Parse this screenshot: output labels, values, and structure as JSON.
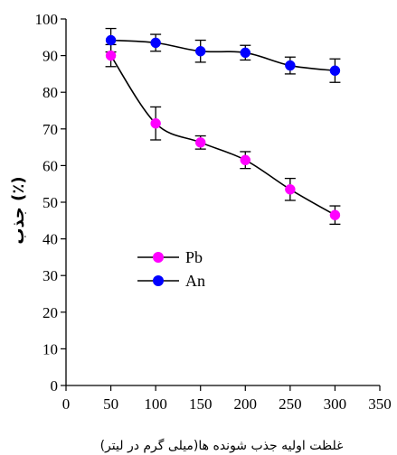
{
  "chart_data": {
    "type": "line",
    "xlabel": "غلظت اولیه جذب شونده ها(میلی گرم در لیتر)",
    "ylabel": "جذب (٪)",
    "xlim": [
      0,
      350
    ],
    "ylim": [
      0,
      100
    ],
    "x_ticks": [
      0,
      50,
      100,
      150,
      200,
      250,
      300,
      350
    ],
    "y_ticks": [
      0,
      10,
      20,
      30,
      40,
      50,
      60,
      70,
      80,
      90,
      100
    ],
    "legend_position": "center-left",
    "grid": false,
    "series": [
      {
        "name": "Pb",
        "color": "#ff00ff",
        "x": [
          50,
          100,
          150,
          200,
          250,
          300
        ],
        "y": [
          90.0,
          71.5,
          66.3,
          61.5,
          53.5,
          46.5
        ],
        "error": [
          3.0,
          4.5,
          1.8,
          2.3,
          3.0,
          2.5
        ]
      },
      {
        "name": "An",
        "color": "#0000ff",
        "x": [
          50,
          100,
          150,
          200,
          250,
          300
        ],
        "y": [
          94.2,
          93.5,
          91.2,
          90.8,
          87.3,
          85.9
        ],
        "error": [
          3.2,
          2.3,
          3.0,
          2.0,
          2.3,
          3.2
        ]
      }
    ]
  }
}
